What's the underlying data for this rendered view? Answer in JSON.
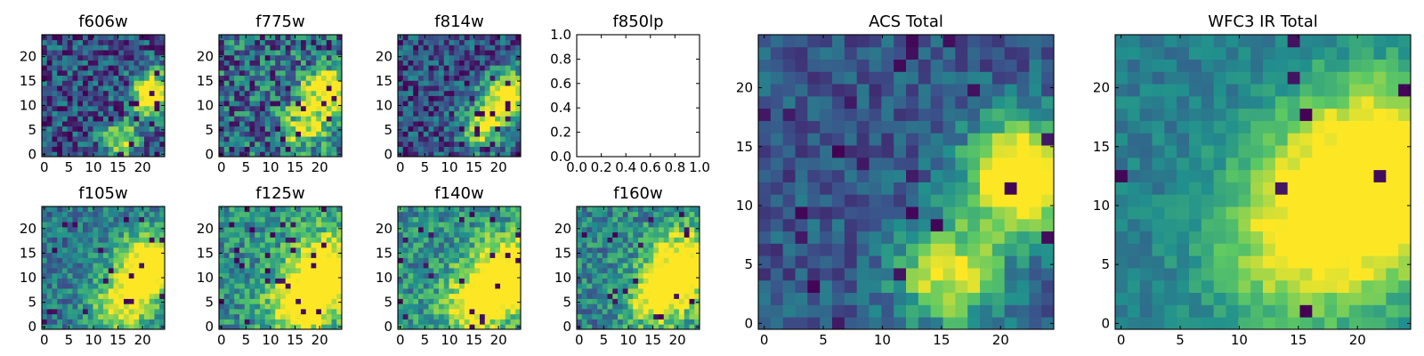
{
  "chart_data": [
    {
      "type": "heatmap",
      "title": "f606w",
      "xticks": [
        "0",
        "5",
        "10",
        "15",
        "20"
      ],
      "yticks": [
        "0",
        "5",
        "10",
        "15",
        "20"
      ],
      "xlim": [
        0,
        24
      ],
      "ylim": [
        0,
        24
      ],
      "grid": 24,
      "empty": false,
      "seed": 11,
      "blobs": [
        [
          21,
          12,
          3.0,
          1.0
        ],
        [
          15,
          3,
          2.5,
          0.7
        ]
      ],
      "noise": 0.55,
      "base": 0.25,
      "dots": 0.06
    },
    {
      "type": "heatmap",
      "title": "f775w",
      "xticks": [
        "0",
        "5",
        "10",
        "15",
        "20"
      ],
      "yticks": [
        "0",
        "5",
        "10",
        "15",
        "20"
      ],
      "xlim": [
        0,
        24
      ],
      "ylim": [
        0,
        24
      ],
      "grid": 24,
      "empty": false,
      "seed": 23,
      "blobs": [
        [
          21,
          12,
          3.5,
          0.9
        ],
        [
          16,
          5,
          3.0,
          0.6
        ]
      ],
      "noise": 0.65,
      "base": 0.35,
      "dots": 0.05
    },
    {
      "type": "heatmap",
      "title": "f814w",
      "xticks": [
        "0",
        "5",
        "10",
        "15",
        "20"
      ],
      "yticks": [
        "0",
        "5",
        "10",
        "15",
        "20"
      ],
      "xlim": [
        0,
        24
      ],
      "ylim": [
        0,
        24
      ],
      "grid": 24,
      "empty": false,
      "seed": 37,
      "blobs": [
        [
          21,
          12,
          3.2,
          1.0
        ],
        [
          16,
          5,
          3.0,
          0.7
        ]
      ],
      "noise": 0.5,
      "base": 0.25,
      "dots": 0.06
    },
    {
      "type": "heatmap",
      "title": "f850lp",
      "xticks": [
        "0.0",
        "0.2",
        "0.4",
        "0.6",
        "0.8",
        "1.0"
      ],
      "yticks": [
        "0.0",
        "0.2",
        "0.4",
        "0.6",
        "0.8",
        "1.0"
      ],
      "xlim": [
        0,
        1
      ],
      "ylim": [
        0,
        1
      ],
      "grid": 0,
      "empty": true
    },
    {
      "type": "heatmap",
      "title": "f105w",
      "xticks": [
        "0",
        "5",
        "10",
        "15",
        "20"
      ],
      "yticks": [
        "0",
        "5",
        "10",
        "15",
        "20"
      ],
      "xlim": [
        0,
        24
      ],
      "ylim": [
        0,
        24
      ],
      "grid": 24,
      "empty": false,
      "seed": 41,
      "blobs": [
        [
          21,
          12,
          4.5,
          0.9
        ],
        [
          15,
          4,
          4.0,
          0.6
        ]
      ],
      "noise": 0.4,
      "base": 0.4,
      "dots": 0.03
    },
    {
      "type": "heatmap",
      "title": "f125w",
      "xticks": [
        "0",
        "5",
        "10",
        "15",
        "20"
      ],
      "yticks": [
        "0",
        "5",
        "10",
        "15",
        "20"
      ],
      "xlim": [
        0,
        24
      ],
      "ylim": [
        0,
        24
      ],
      "grid": 24,
      "empty": false,
      "seed": 53,
      "blobs": [
        [
          21,
          11,
          5.0,
          0.8
        ],
        [
          15,
          4,
          4.0,
          0.7
        ]
      ],
      "noise": 0.45,
      "base": 0.5,
      "dots": 0.04
    },
    {
      "type": "heatmap",
      "title": "f140w",
      "xticks": [
        "0",
        "5",
        "10",
        "15",
        "20"
      ],
      "yticks": [
        "0",
        "5",
        "10",
        "15",
        "20"
      ],
      "xlim": [
        0,
        24
      ],
      "ylim": [
        0,
        24
      ],
      "grid": 24,
      "empty": false,
      "seed": 67,
      "blobs": [
        [
          21,
          10,
          5.0,
          0.8
        ],
        [
          14,
          4,
          4.0,
          0.6
        ]
      ],
      "noise": 0.45,
      "base": 0.5,
      "dots": 0.04
    },
    {
      "type": "heatmap",
      "title": "f160w",
      "xticks": [
        "0",
        "5",
        "10",
        "15",
        "20"
      ],
      "yticks": [
        "0",
        "5",
        "10",
        "15",
        "20"
      ],
      "xlim": [
        0,
        24
      ],
      "ylim": [
        0,
        24
      ],
      "grid": 24,
      "empty": false,
      "seed": 79,
      "blobs": [
        [
          21,
          12,
          5.0,
          0.8
        ],
        [
          15,
          5,
          4.0,
          0.6
        ]
      ],
      "noise": 0.45,
      "base": 0.45,
      "dots": 0.04
    },
    {
      "type": "heatmap",
      "title": "ACS Total",
      "xticks": [
        "0",
        "5",
        "10",
        "15",
        "20"
      ],
      "yticks": [
        "0",
        "5",
        "10",
        "15",
        "20"
      ],
      "xlim": [
        0,
        24
      ],
      "ylim": [
        0,
        24
      ],
      "grid": 24,
      "empty": false,
      "seed": 97,
      "blobs": [
        [
          21,
          12,
          3.2,
          1.05
        ],
        [
          15,
          4,
          3.0,
          0.7
        ]
      ],
      "noise": 0.3,
      "base": 0.28,
      "dots": 0.035
    },
    {
      "type": "heatmap",
      "title": "WFC3 IR Total",
      "xticks": [
        "0",
        "5",
        "10",
        "15",
        "20"
      ],
      "yticks": [
        "0",
        "5",
        "10",
        "15",
        "20"
      ],
      "xlim": [
        0,
        24
      ],
      "ylim": [
        0,
        24
      ],
      "grid": 24,
      "empty": false,
      "seed": 113,
      "blobs": [
        [
          21,
          12,
          5.5,
          0.85
        ],
        [
          14,
          6,
          5.0,
          0.45
        ]
      ],
      "noise": 0.2,
      "base": 0.42,
      "dots": 0.02
    }
  ],
  "colormap": [
    "#440154",
    "#3b528b",
    "#21908d",
    "#5dc963",
    "#fde725"
  ]
}
